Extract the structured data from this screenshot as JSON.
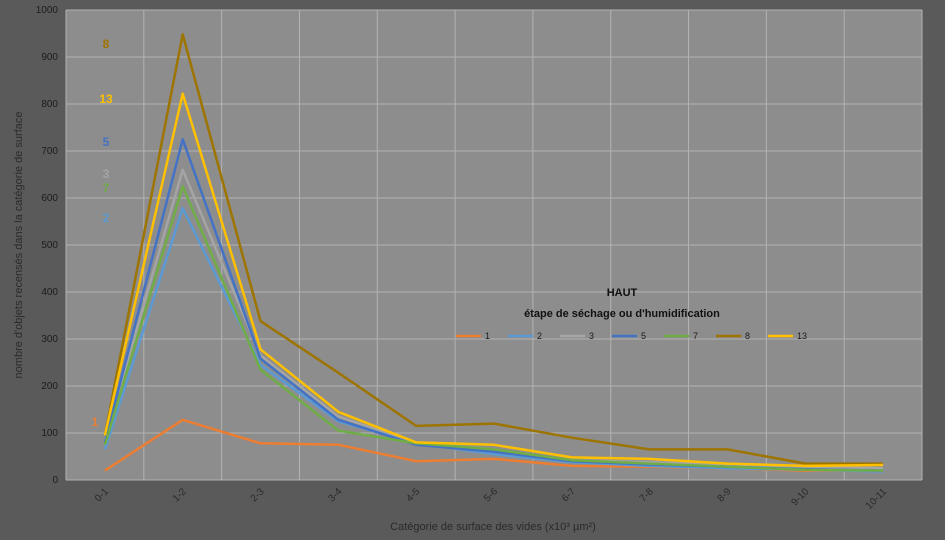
{
  "chart_data": {
    "type": "line",
    "title": "",
    "xlabel": "Catégorie de surface des vides (x10³ µm²)",
    "ylabel": "nombre d'objets recensés dans la catégorie de surface",
    "ylim": [
      0,
      1000
    ],
    "yticks": [
      "0",
      "100",
      "200",
      "300",
      "400",
      "500",
      "600",
      "700",
      "800",
      "900",
      "1000"
    ],
    "categories": [
      "0-1",
      "1-2",
      "2-3",
      "3-4",
      "4-5",
      "5-6",
      "6-7",
      "7-8",
      "8-9",
      "9-10",
      "10-11"
    ],
    "grid": true,
    "legend": {
      "title": "HAUT",
      "subtitle": "étape de séchage ou d'humidification",
      "placement": "center-right"
    },
    "series": [
      {
        "name": "1",
        "color": "#ed7d31",
        "label": "1",
        "values": [
          20,
          128,
          78,
          75,
          40,
          45,
          30,
          28,
          25,
          20,
          20
        ]
      },
      {
        "name": "2",
        "color": "#5b9bd5",
        "label": "2",
        "values": [
          65,
          578,
          245,
          125,
          78,
          55,
          38,
          30,
          25,
          22,
          18
        ]
      },
      {
        "name": "3",
        "color": "#a5a5a5",
        "label": "3",
        "values": [
          85,
          660,
          265,
          135,
          80,
          65,
          42,
          38,
          32,
          28,
          25
        ]
      },
      {
        "name": "5",
        "color": "#4472c4",
        "label": "5",
        "values": [
          80,
          725,
          258,
          128,
          75,
          60,
          40,
          33,
          28,
          23,
          20
        ]
      },
      {
        "name": "7",
        "color": "#70ad47",
        "label": "7",
        "values": [
          75,
          625,
          235,
          105,
          78,
          65,
          42,
          35,
          28,
          22,
          20
        ]
      },
      {
        "name": "8",
        "color": "#9e7400",
        "label": "8",
        "values": [
          95,
          948,
          338,
          228,
          115,
          120,
          90,
          65,
          65,
          35,
          35
        ]
      },
      {
        "name": "13",
        "color": "#ffc000",
        "label": "13",
        "values": [
          95,
          822,
          278,
          145,
          80,
          75,
          48,
          45,
          35,
          30,
          32
        ]
      }
    ]
  }
}
